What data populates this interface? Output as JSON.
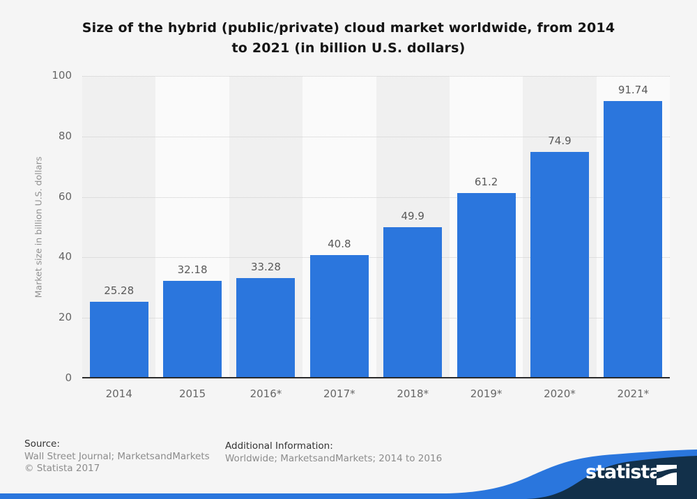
{
  "header": {
    "title_lines": [
      "Size of the hybrid (public/private) cloud market worldwide, from 2014",
      "to 2021 (in billion U.S. dollars)"
    ]
  },
  "chart_data": {
    "type": "bar",
    "title": "Size of the hybrid (public/private) cloud market worldwide, from 2014 to 2021 (in billion U.S. dollars)",
    "categories": [
      "2014",
      "2015",
      "2016*",
      "2017*",
      "2018*",
      "2019*",
      "2020*",
      "2021*"
    ],
    "values": [
      25.28,
      32.18,
      33.28,
      40.8,
      49.9,
      61.2,
      74.9,
      91.74
    ],
    "value_labels": [
      "25.28",
      "32.18",
      "33.28",
      "40.8",
      "49.9",
      "61.2",
      "74.9",
      "91.74"
    ],
    "xlabel": "",
    "ylabel": "Market size in billion U.S. dollars",
    "ylim": [
      0,
      100
    ],
    "yticks": [
      0,
      20,
      40,
      60,
      80,
      100
    ],
    "grid": "horizontal-dotted",
    "legend": "none",
    "bar_color": "#2b76dd",
    "band_colors": [
      "#f0f0f0",
      "#fafafa"
    ]
  },
  "footer": {
    "source_label": "Source:",
    "source_line1": "Wall Street Journal; MarketsandMarkets",
    "source_line2": "© Statista 2017",
    "additional_label": "Additional Information:",
    "additional_text": "Worldwide; MarketsandMarkets; 2014 to 2016",
    "brand": "statista",
    "brand_navy": "#12304a",
    "brand_blue": "#2a76dd"
  }
}
